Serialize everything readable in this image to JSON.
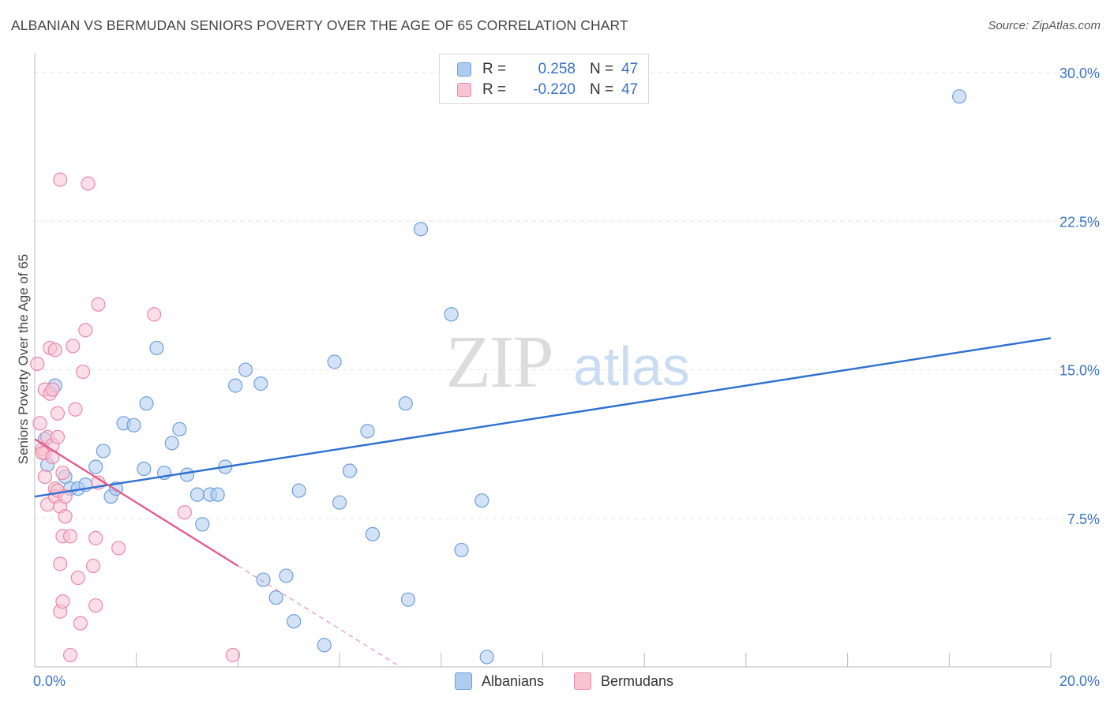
{
  "title": "ALBANIAN VS BERMUDAN SENIORS POVERTY OVER THE AGE OF 65 CORRELATION CHART",
  "source": "Source: ZipAtlas.com",
  "watermark": {
    "zip": "ZIP",
    "atlas": "atlas"
  },
  "legend": {
    "r_label": "R =",
    "n_label": "N =",
    "rows": [
      {
        "r": "0.258",
        "n": "47",
        "color": "#aecbf0",
        "border": "#6f9fdc"
      },
      {
        "r": "-0.220",
        "n": "47",
        "color": "#f8c3d3",
        "border": "#e98aa8"
      }
    ]
  },
  "chart_data": {
    "type": "scatter",
    "title": "ALBANIAN VS BERMUDAN SENIORS POVERTY OVER THE AGE OF 65 CORRELATION CHART",
    "xlabel": "",
    "ylabel": "Seniors Poverty Over the Age of 65",
    "xlim": [
      0,
      20
    ],
    "ylim": [
      0,
      30.8
    ],
    "x_tick_labels": [
      "0.0%",
      "20.0%"
    ],
    "y_ticks": [
      7.5,
      15.0,
      22.5,
      30.0
    ],
    "y_tick_labels": [
      "7.5%",
      "15.0%",
      "22.5%",
      "30.0%"
    ],
    "grid": true,
    "series": [
      {
        "name": "Albanians",
        "color": "#aecbf0",
        "edge": "#6f9fdc",
        "trend_color": "#2e6fd0",
        "trend": {
          "x0": 0.0,
          "y0": 8.6,
          "x1": 20.0,
          "y1": 16.6
        },
        "points": [
          [
            0.2,
            11.5
          ],
          [
            0.4,
            14.2
          ],
          [
            0.6,
            9.6
          ],
          [
            0.7,
            9.0
          ],
          [
            0.85,
            9.0
          ],
          [
            1.0,
            9.2
          ],
          [
            1.2,
            10.1
          ],
          [
            1.35,
            10.9
          ],
          [
            1.5,
            8.6
          ],
          [
            1.6,
            9.0
          ],
          [
            1.75,
            12.3
          ],
          [
            1.95,
            12.2
          ],
          [
            2.15,
            10.0
          ],
          [
            2.2,
            13.3
          ],
          [
            2.4,
            16.1
          ],
          [
            2.55,
            9.8
          ],
          [
            2.7,
            11.3
          ],
          [
            2.85,
            12.0
          ],
          [
            3.0,
            9.7
          ],
          [
            3.2,
            8.7
          ],
          [
            3.3,
            7.2
          ],
          [
            3.45,
            8.7
          ],
          [
            3.6,
            8.7
          ],
          [
            3.75,
            10.1
          ],
          [
            3.95,
            14.2
          ],
          [
            4.15,
            15.0
          ],
          [
            4.45,
            14.3
          ],
          [
            4.5,
            4.4
          ],
          [
            4.75,
            3.5
          ],
          [
            4.95,
            4.6
          ],
          [
            5.1,
            2.3
          ],
          [
            5.2,
            8.9
          ],
          [
            5.7,
            1.1
          ],
          [
            5.9,
            15.4
          ],
          [
            6.0,
            8.3
          ],
          [
            6.2,
            9.9
          ],
          [
            6.55,
            11.9
          ],
          [
            6.65,
            6.7
          ],
          [
            7.3,
            13.3
          ],
          [
            7.35,
            3.4
          ],
          [
            7.6,
            22.1
          ],
          [
            8.2,
            17.8
          ],
          [
            8.4,
            5.9
          ],
          [
            8.8,
            8.4
          ],
          [
            8.9,
            0.5
          ],
          [
            18.2,
            28.8
          ],
          [
            0.25,
            10.2
          ]
        ]
      },
      {
        "name": "Bermudans",
        "color": "#f8c3d3",
        "edge": "#e98aa8",
        "trend_color": "#e0608c",
        "trend": {
          "x0": 0.0,
          "y0": 11.5,
          "x1": 4.0,
          "y1": 5.1
        },
        "trend_extension": {
          "x0": 4.0,
          "y0": 5.1,
          "x1": 7.2,
          "y1": 0.0
        },
        "points": [
          [
            0.05,
            15.3
          ],
          [
            0.1,
            12.3
          ],
          [
            0.15,
            11.0
          ],
          [
            0.2,
            10.8
          ],
          [
            0.2,
            9.6
          ],
          [
            0.25,
            8.2
          ],
          [
            0.2,
            14.0
          ],
          [
            0.25,
            11.6
          ],
          [
            0.3,
            16.1
          ],
          [
            0.3,
            13.8
          ],
          [
            0.35,
            14.0
          ],
          [
            0.35,
            11.2
          ],
          [
            0.4,
            9.0
          ],
          [
            0.4,
            8.6
          ],
          [
            0.4,
            16.0
          ],
          [
            0.45,
            11.6
          ],
          [
            0.45,
            12.8
          ],
          [
            0.45,
            8.9
          ],
          [
            0.5,
            5.2
          ],
          [
            0.5,
            2.8
          ],
          [
            0.5,
            8.1
          ],
          [
            0.55,
            3.3
          ],
          [
            0.5,
            24.6
          ],
          [
            0.55,
            6.6
          ],
          [
            0.55,
            9.8
          ],
          [
            0.6,
            7.6
          ],
          [
            0.7,
            0.6
          ],
          [
            0.7,
            6.6
          ],
          [
            0.75,
            16.2
          ],
          [
            0.8,
            13.0
          ],
          [
            0.85,
            4.5
          ],
          [
            0.9,
            2.2
          ],
          [
            0.95,
            14.9
          ],
          [
            1.0,
            17.0
          ],
          [
            1.05,
            24.4
          ],
          [
            1.15,
            5.1
          ],
          [
            1.2,
            6.5
          ],
          [
            1.2,
            3.1
          ],
          [
            1.25,
            9.3
          ],
          [
            1.25,
            18.3
          ],
          [
            1.65,
            6.0
          ],
          [
            2.35,
            17.8
          ],
          [
            2.95,
            7.8
          ],
          [
            3.9,
            0.6
          ],
          [
            0.15,
            10.8
          ],
          [
            0.35,
            10.6
          ],
          [
            0.6,
            8.6
          ]
        ]
      }
    ]
  }
}
